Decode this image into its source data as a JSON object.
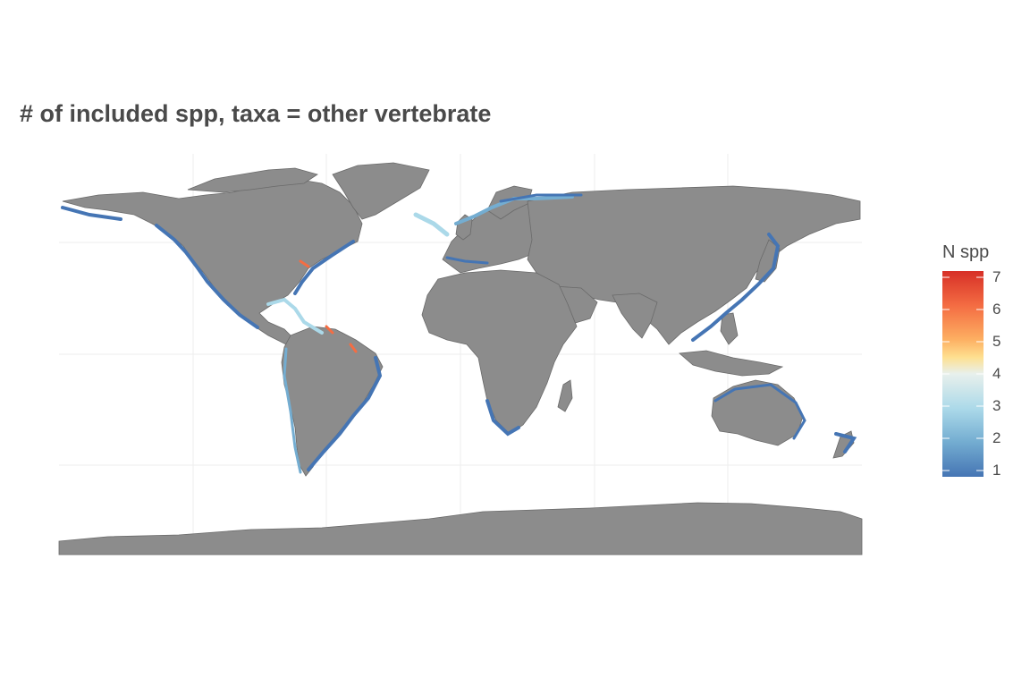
{
  "title": "# of included spp, taxa = other vertebrate",
  "map": {
    "projection": "equirectangular-world",
    "land_color": "#8c8c8c",
    "border_color": "#6a6a6a",
    "background": "#ffffff",
    "gridlines": true
  },
  "legend": {
    "title": "N spp",
    "min": 1,
    "max": 7,
    "ticks": [
      7,
      6,
      5,
      4,
      3,
      2,
      1
    ],
    "tick_labels": [
      "7",
      "6",
      "5",
      "4",
      "3",
      "2",
      "1"
    ],
    "colors": [
      "#d73027",
      "#f46d43",
      "#fdae61",
      "#fee090",
      "#e0f3f8",
      "#abd9e9",
      "#74add1",
      "#4575b4"
    ]
  }
}
